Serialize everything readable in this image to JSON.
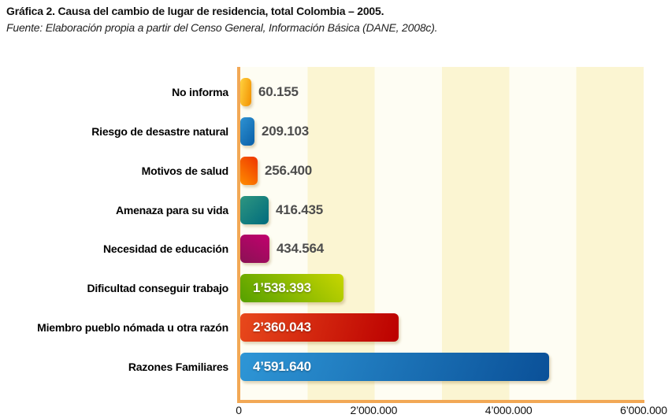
{
  "header": {
    "title_prefix": "Gráfica 2.",
    "title_rest": " Causa del cambio de lugar de residencia, total Colombia – 2005.",
    "source": "Fuente: Elaboración propia a partir del Censo General, Información Básica (DANE, 2008c)."
  },
  "chart_data": {
    "type": "bar",
    "orientation": "horizontal",
    "title": "Gráfica 2. Causa del cambio de lugar de residencia, total Colombia – 2005.",
    "categories": [
      "No informa",
      "Riesgo de desastre natural",
      "Motivos de salud",
      "Amenaza para su vida",
      "Necesidad de educación",
      "Dificultad conseguir trabajo",
      "Miembro pueblo nómada u otra razón",
      "Razones Familiares"
    ],
    "values": [
      60155,
      209103,
      256400,
      416435,
      434564,
      1538393,
      2360043,
      4591640
    ],
    "value_labels": [
      "60.155",
      "209.103",
      "256.400",
      "416.435",
      "434.564",
      "1’538.393",
      "2’360.043",
      "4’591.640"
    ],
    "xlim": [
      0,
      6000000
    ],
    "x_tick_values": [
      0,
      2000000,
      4000000,
      6000000
    ],
    "x_tick_labels": [
      "0",
      "2’000.000",
      "4’000.000",
      "6’000.000"
    ],
    "grid": "alternating vertical cream bands, one per 1'000.000",
    "legend": "none",
    "colors": {
      "axis": "#F2A855",
      "band_light": "#FEFDF3",
      "band_cream": "#FBF5D2",
      "value_outside_text": "#4D4D4D",
      "value_inside_text": "#FFFFFF"
    },
    "bar_styles": [
      {
        "angle": 100,
        "from": "#FFD23F",
        "to": "#F29000"
      },
      {
        "angle": 125,
        "from": "#2E92D2",
        "to": "#0A5FA8"
      },
      {
        "angle": 45,
        "from": "#FF8D00",
        "to": "#EE3500"
      },
      {
        "angle": 135,
        "from": "#2E9680",
        "to": "#006B7D"
      },
      {
        "angle": 210,
        "from": "#C2006E",
        "to": "#8A1254"
      },
      {
        "angle": 45,
        "from": "#55A000",
        "to": "#C8D600"
      },
      {
        "angle": 105,
        "from": "#E8491C",
        "to": "#BB0000"
      },
      {
        "angle": 110,
        "from": "#2E96D6",
        "to": "#0A5098"
      }
    ]
  }
}
